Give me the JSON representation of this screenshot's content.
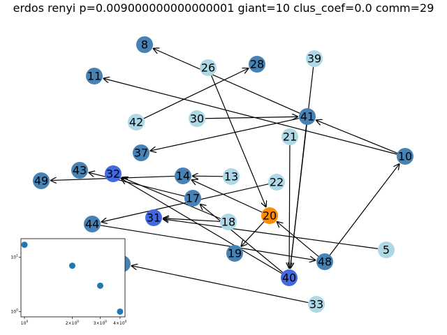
{
  "title": "erdos renyi p=0.009000000000000001 giant=10 clus_coef=0.0 comm=29",
  "colors": {
    "steelblue": "#4682b4",
    "lightblue": "#add8e6",
    "royalblue": "#4169e1",
    "orange": "#ff8c00",
    "edge": "#000000",
    "inset_point": "#1f77b4"
  },
  "nodes": [
    {
      "id": "8",
      "color": "steelblue"
    },
    {
      "id": "26",
      "color": "lightblue"
    },
    {
      "id": "28",
      "color": "steelblue"
    },
    {
      "id": "39",
      "color": "lightblue"
    },
    {
      "id": "11",
      "color": "steelblue"
    },
    {
      "id": "42",
      "color": "lightblue"
    },
    {
      "id": "30",
      "color": "lightblue"
    },
    {
      "id": "41",
      "color": "steelblue"
    },
    {
      "id": "21",
      "color": "lightblue"
    },
    {
      "id": "37",
      "color": "steelblue"
    },
    {
      "id": "10",
      "color": "steelblue"
    },
    {
      "id": "43",
      "color": "steelblue"
    },
    {
      "id": "32",
      "color": "royalblue"
    },
    {
      "id": "14",
      "color": "steelblue"
    },
    {
      "id": "13",
      "color": "lightblue"
    },
    {
      "id": "49",
      "color": "steelblue"
    },
    {
      "id": "22",
      "color": "lightblue"
    },
    {
      "id": "17",
      "color": "steelblue"
    },
    {
      "id": "20",
      "color": "orange"
    },
    {
      "id": "31",
      "color": "royalblue"
    },
    {
      "id": "18",
      "color": "lightblue"
    },
    {
      "id": "44",
      "color": "steelblue"
    },
    {
      "id": "5",
      "color": "lightblue"
    },
    {
      "id": "19",
      "color": "steelblue"
    },
    {
      "id": "48",
      "color": "steelblue"
    },
    {
      "id": "40",
      "color": "royalblue"
    },
    {
      "id": "33",
      "color": "lightblue"
    },
    {
      "id": "hidden",
      "color": "steelblue"
    }
  ],
  "edges": [
    [
      "41",
      "8"
    ],
    [
      "42",
      "28"
    ],
    [
      "26",
      "20"
    ],
    [
      "39",
      "40"
    ],
    [
      "10",
      "11"
    ],
    [
      "30",
      "41"
    ],
    [
      "10",
      "41"
    ],
    [
      "41",
      "37"
    ],
    [
      "21",
      "40"
    ],
    [
      "41",
      "40"
    ],
    [
      "48",
      "10"
    ],
    [
      "17",
      "43"
    ],
    [
      "13",
      "14"
    ],
    [
      "14",
      "49"
    ],
    [
      "20",
      "14"
    ],
    [
      "22",
      "44"
    ],
    [
      "18",
      "32"
    ],
    [
      "40",
      "32"
    ],
    [
      "40",
      "17"
    ],
    [
      "18",
      "31"
    ],
    [
      "5",
      "31"
    ],
    [
      "20",
      "19"
    ],
    [
      "48",
      "20"
    ],
    [
      "44",
      "48"
    ],
    [
      "33",
      "hidden"
    ]
  ],
  "inset": {
    "points": [
      {
        "x": 1,
        "y": 17
      },
      {
        "x": 2,
        "y": 7
      },
      {
        "x": 3,
        "y": 3
      },
      {
        "x": 4,
        "y": 1
      }
    ],
    "x_scale": "log",
    "y_scale": "log",
    "x_ticks": [
      {
        "value": 1,
        "label": "10^0"
      },
      {
        "value": 2,
        "label": "2×10^0"
      },
      {
        "value": 3,
        "label": "3×10^0"
      },
      {
        "value": 4,
        "label": "4×10^0"
      }
    ],
    "y_ticks": [
      {
        "value": 1,
        "label": "10^0"
      },
      {
        "value": 10,
        "label": "10^1"
      }
    ]
  }
}
